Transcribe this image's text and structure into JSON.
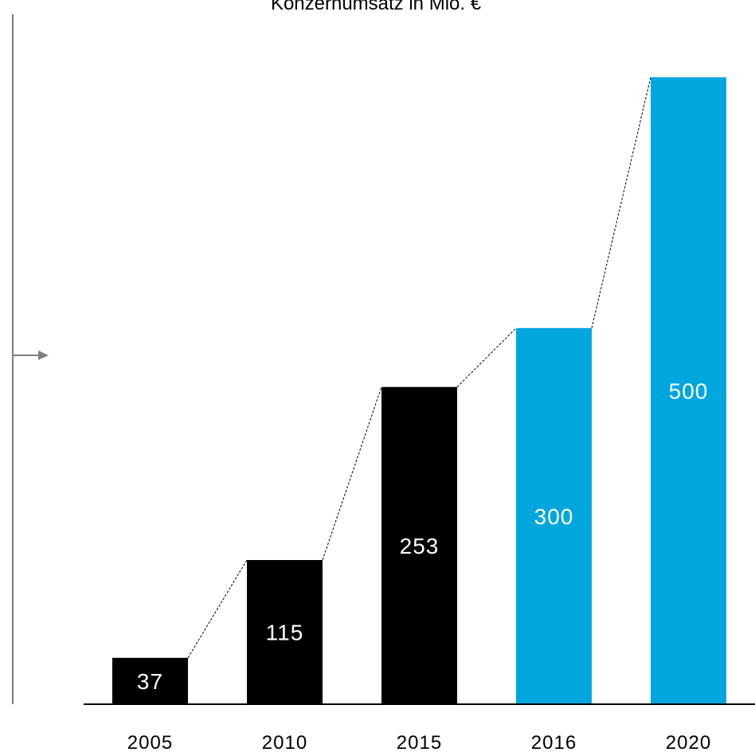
{
  "chart_data": {
    "type": "bar",
    "title": "Konzernumsatz in Mio. €",
    "categories": [
      "2005",
      "2010",
      "2015",
      "2016",
      "2020"
    ],
    "values": [
      37,
      115,
      253,
      300,
      500
    ],
    "value_labels": [
      "37",
      "115",
      "253",
      "300",
      "500"
    ],
    "xlabel": "",
    "ylabel": "",
    "ylim": [
      0,
      500
    ],
    "grid": false,
    "legend": "none",
    "colors": {
      "actual": "#000000",
      "forecast": "#00a6de",
      "label_text": "#ffffff",
      "axis": "#000000",
      "side_rule": "#7f7f7f",
      "connector": "#000000"
    },
    "bar_color_keys": [
      "actual",
      "actual",
      "actual",
      "forecast",
      "forecast"
    ]
  }
}
